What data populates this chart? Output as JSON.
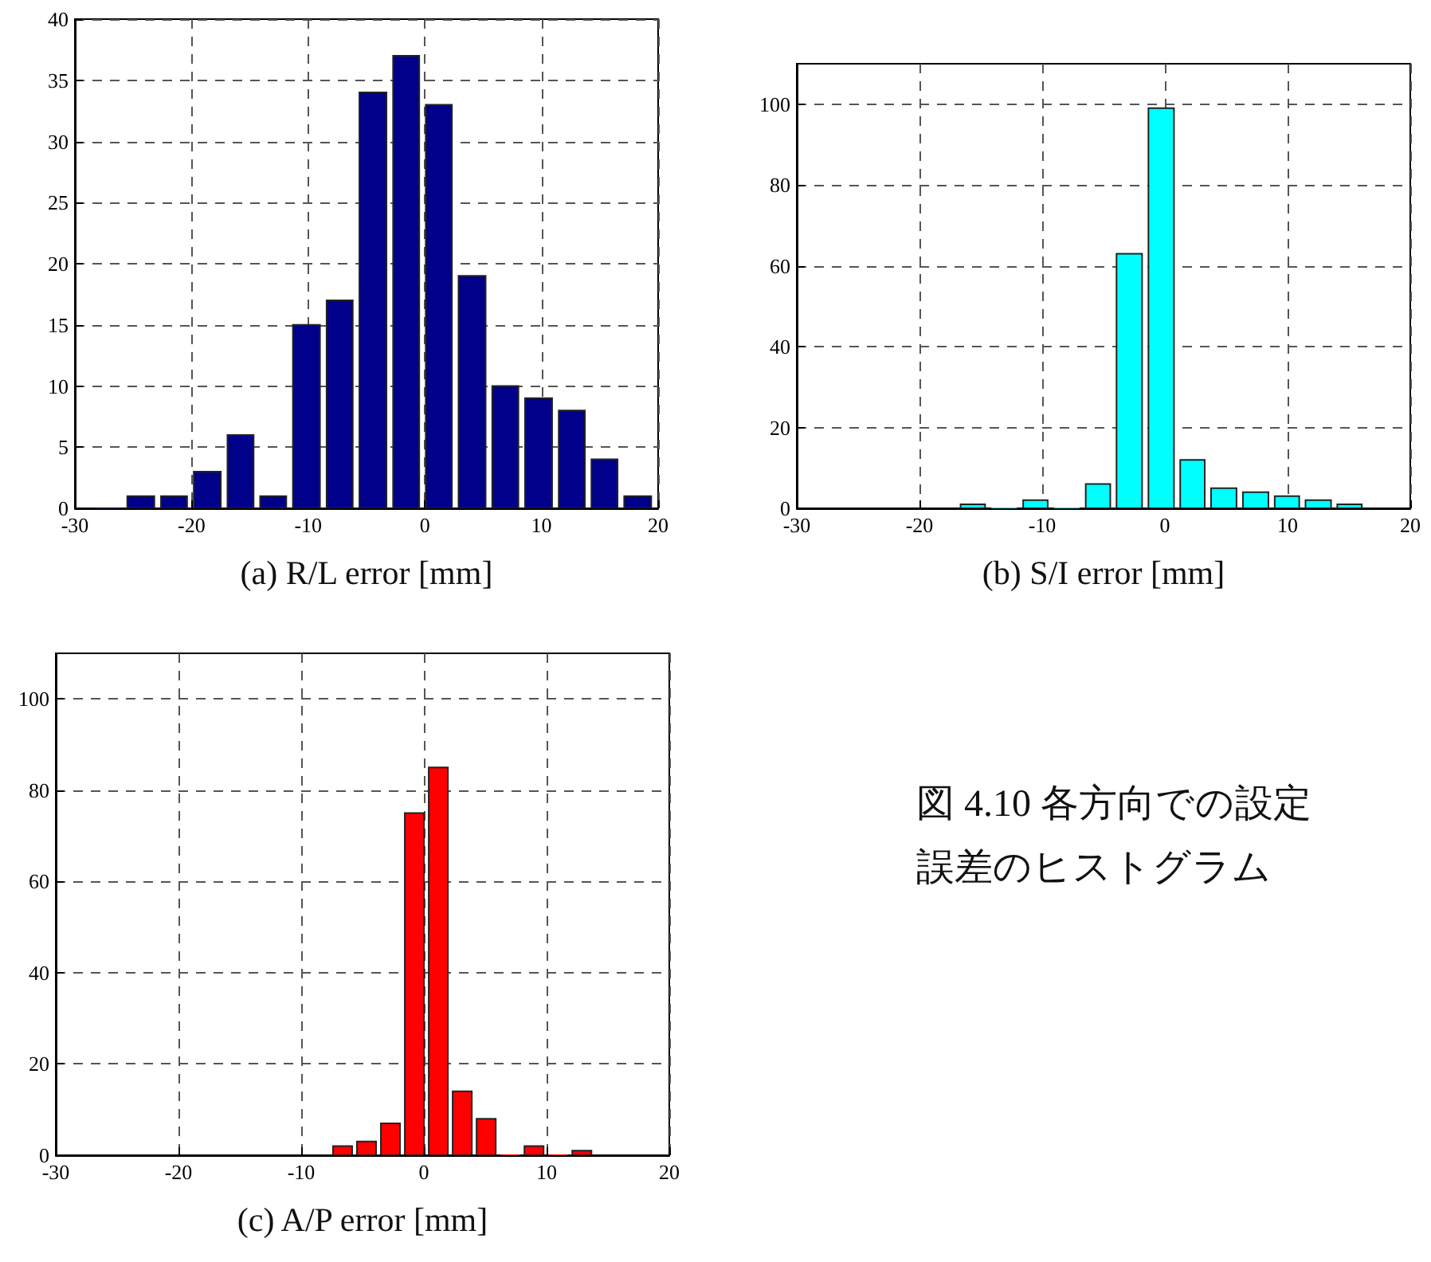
{
  "chart_data": [
    {
      "type": "histogram",
      "xlabel": "(a) R/L error [mm]",
      "bins": [
        -28.6,
        -25.8,
        -22.9,
        -20.1,
        -17.2,
        -14.4,
        -11.6,
        -8.7,
        -5.9,
        -3.0,
        -0.2,
        2.6,
        5.5,
        8.3,
        11.2,
        14.0,
        16.8,
        19.7
      ],
      "values": [
        0,
        1,
        1,
        3,
        6,
        1,
        15,
        17,
        34,
        37,
        33,
        19,
        10,
        9,
        8,
        4,
        1
      ],
      "color": "#00008b",
      "xlim": [
        -30,
        20
      ],
      "xticks": [
        -30,
        -20,
        -10,
        0,
        10,
        20
      ],
      "ylim": [
        0,
        40
      ],
      "yticks": [
        0,
        5,
        10,
        15,
        20,
        25,
        30,
        35,
        40
      ],
      "grid": true
    },
    {
      "type": "histogram",
      "xlabel": "(b) S/I error [mm]",
      "bins": [
        -16.9,
        -14.4,
        -11.8,
        -9.3,
        -6.7,
        -4.2,
        -1.6,
        1.0,
        3.5,
        6.1,
        8.7,
        11.2,
        13.8,
        16.3
      ],
      "values": [
        1,
        0,
        2,
        0,
        6,
        63,
        99,
        12,
        5,
        4,
        3,
        2,
        1
      ],
      "color": "#00ffff",
      "xlim": [
        -30,
        20
      ],
      "xticks": [
        -30,
        -20,
        -10,
        0,
        10,
        20
      ],
      "ylim": [
        0,
        110
      ],
      "yticks": [
        0,
        20,
        40,
        60,
        80,
        100
      ],
      "grid": true
    },
    {
      "type": "histogram",
      "xlabel": "(c) A/P error [mm]",
      "bins": [
        -7.6,
        -5.65,
        -3.7,
        -1.75,
        0.2,
        2.15,
        4.1,
        6.05,
        8.0,
        9.95,
        11.9,
        13.85
      ],
      "values": [
        2,
        3,
        7,
        75,
        85,
        14,
        8,
        0,
        2,
        0,
        1
      ],
      "color": "#ff0000",
      "xlim": [
        -30,
        20
      ],
      "xticks": [
        -30,
        -20,
        -10,
        0,
        10,
        20
      ],
      "ylim": [
        0,
        110
      ],
      "yticks": [
        0,
        20,
        40,
        60,
        80,
        100
      ],
      "grid": true,
      "annotations": [
        "図 4.10 各方向での設定誤差のヒストグラム"
      ]
    }
  ]
}
